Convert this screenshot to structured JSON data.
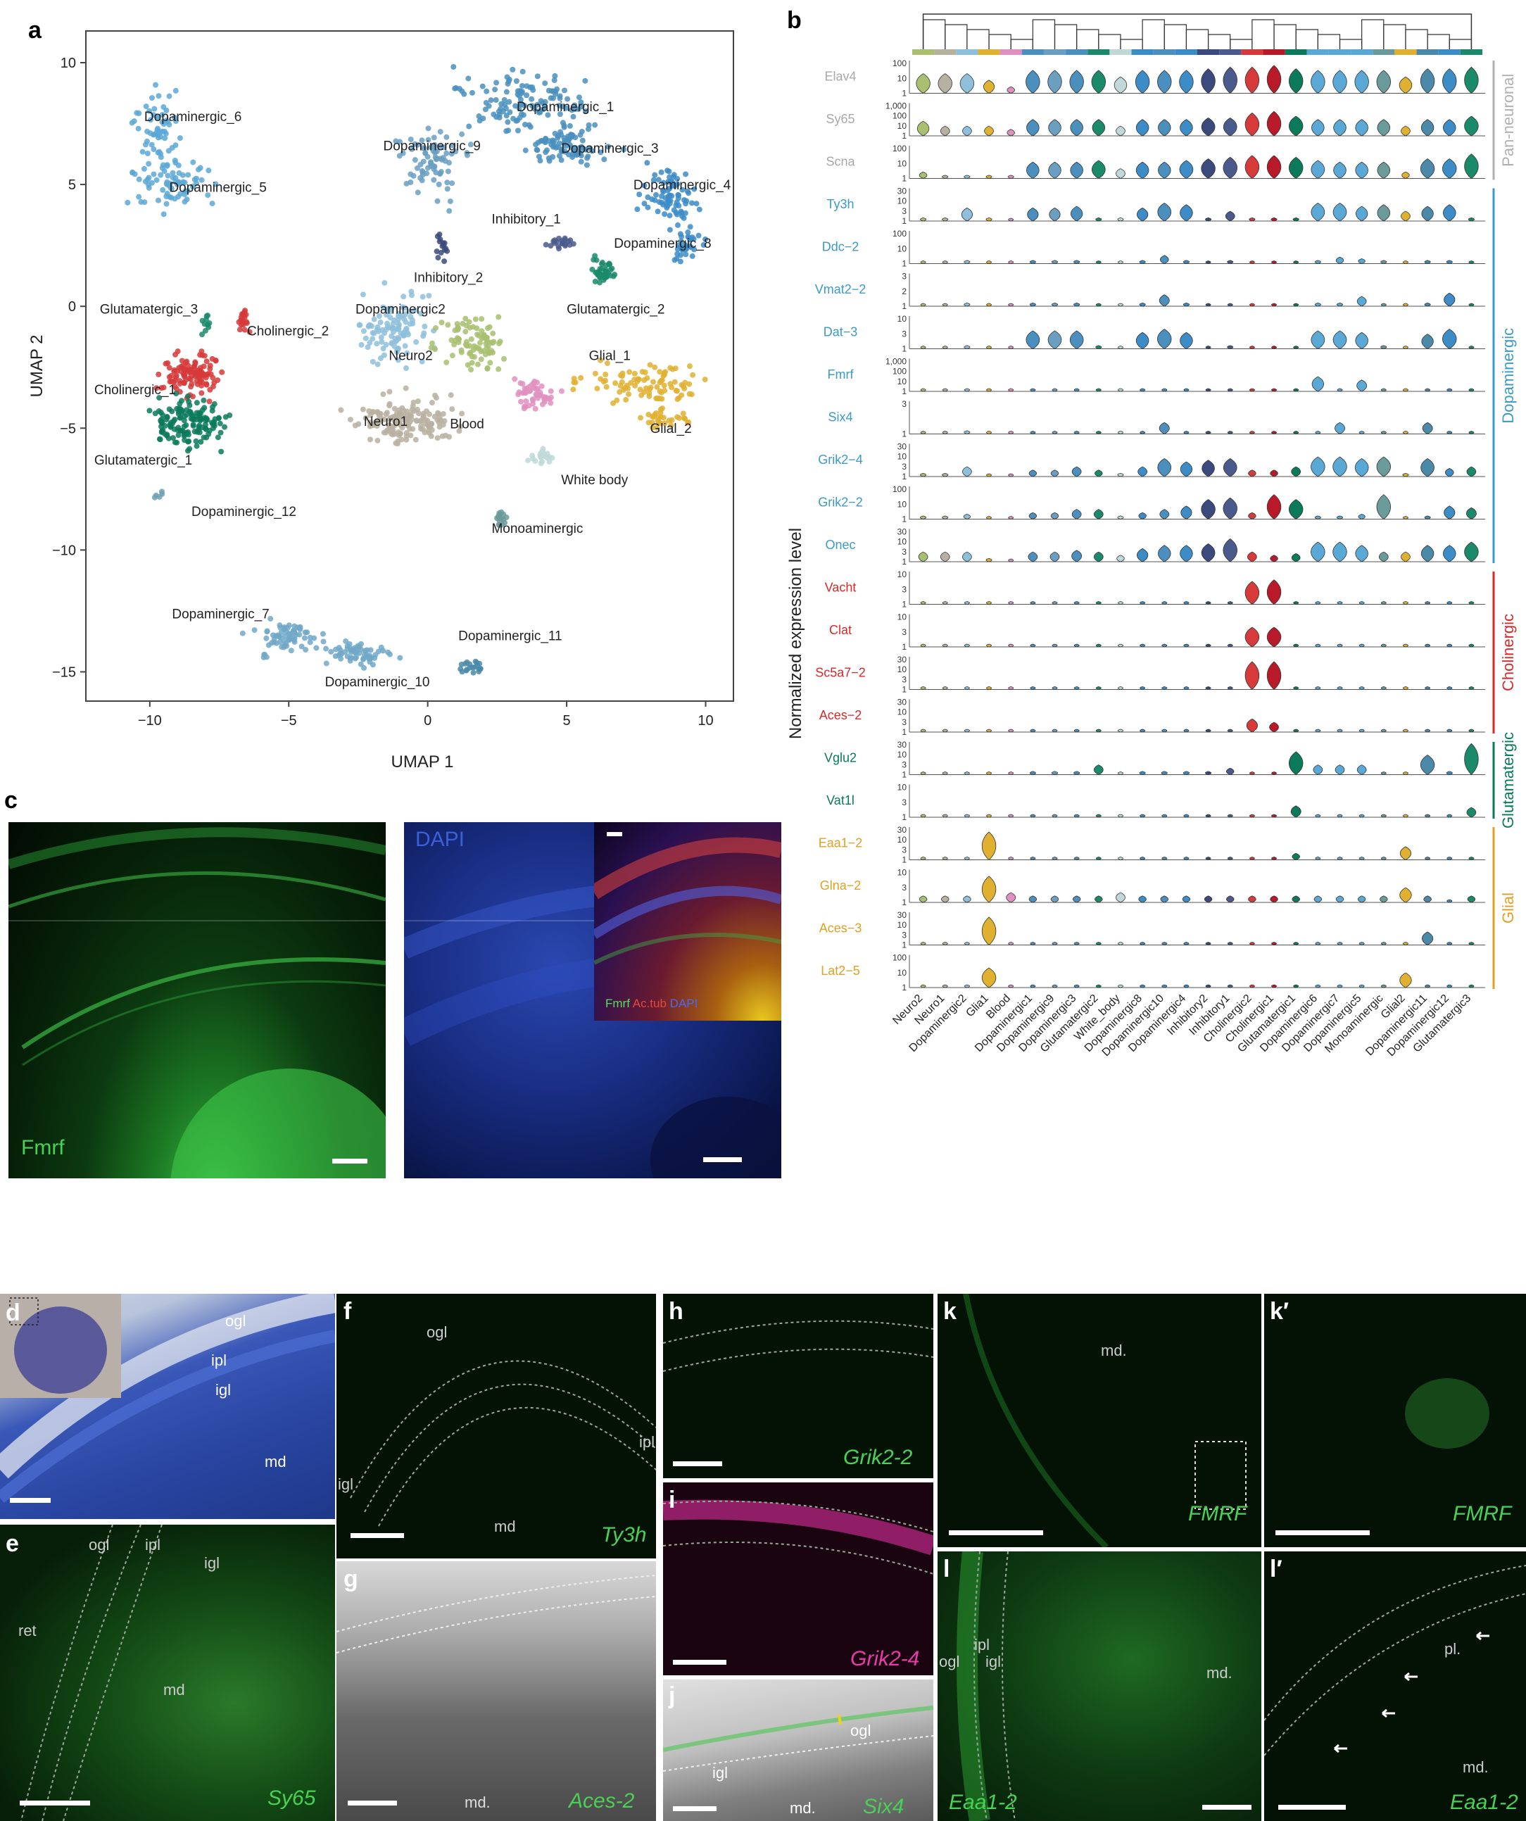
{
  "panel_letters": {
    "a": "a",
    "b": "b",
    "c": "c",
    "d": "d",
    "e": "e",
    "f": "f",
    "g": "g",
    "h": "h",
    "i": "i",
    "j": "j",
    "k": "k",
    "k_prime": "k′",
    "l": "l",
    "l_prime": "l′"
  },
  "umap": {
    "xlabel": "UMAP 1",
    "ylabel": "UMAP 2",
    "x_ticks": [
      "−10",
      "−5",
      "0",
      "5",
      "10"
    ],
    "y_ticks": [
      "10",
      "5",
      "0",
      "−5",
      "−10",
      "−15"
    ],
    "clusters": [
      {
        "name": "Dopaminergic_6",
        "color": "#5aa8d6"
      },
      {
        "name": "Dopaminergic_5",
        "color": "#5aa8d6"
      },
      {
        "name": "Dopaminergic_1",
        "color": "#4a8fbe"
      },
      {
        "name": "Dopaminergic_9",
        "color": "#6a9fc2"
      },
      {
        "name": "Dopaminergic_3",
        "color": "#4a8fbe"
      },
      {
        "name": "Dopaminergic_4",
        "color": "#3c8cc8"
      },
      {
        "name": "Inhibitory_1",
        "color": "#4a5a8c"
      },
      {
        "name": "Dopaminergic_8",
        "color": "#3c8cc8"
      },
      {
        "name": "Inhibitory_2",
        "color": "#3a4a7c"
      },
      {
        "name": "Glutamatergic_2",
        "color": "#1a8a6a"
      },
      {
        "name": "Glutamatergic_3",
        "color": "#1a8a6a"
      },
      {
        "name": "Cholinergic_2",
        "color": "#d63a3a"
      },
      {
        "name": "Dopaminergic2",
        "color": "#8ec0dc"
      },
      {
        "name": "Neuro2",
        "color": "#a8c070"
      },
      {
        "name": "Glial_1",
        "color": "#e0b030"
      },
      {
        "name": "Cholinergic_1",
        "color": "#d63a3a"
      },
      {
        "name": "Neuro1",
        "color": "#b8b0a0"
      },
      {
        "name": "Blood",
        "color": "#e090c0"
      },
      {
        "name": "Glial_2",
        "color": "#e0b030"
      },
      {
        "name": "Glutamatergic_1",
        "color": "#0a7a5a"
      },
      {
        "name": "White body",
        "color": "#c0d8d8"
      },
      {
        "name": "Dopaminergic_12",
        "color": "#70a0b0"
      },
      {
        "name": "Monoaminergic",
        "color": "#6a9a9a"
      },
      {
        "name": "Dopaminergic_7",
        "color": "#70a8c8"
      },
      {
        "name": "Dopaminergic_11",
        "color": "#4a8aa8"
      },
      {
        "name": "Dopaminergic_10",
        "color": "#70a8c8"
      }
    ]
  },
  "violin": {
    "ylabel": "Normalized expression level",
    "categories": [
      "Neuro2",
      "Neuro1",
      "Dopaminergic2",
      "Glia1",
      "Blood",
      "Dopaminergic1",
      "Dopaminergic9",
      "Dopaminergic3",
      "Glutamatergic2",
      "White_body",
      "Dopaminergic8",
      "Dopaminergic10",
      "Dopaminergic4",
      "Inhibitory2",
      "Inhibitory1",
      "Cholinergic2",
      "Cholinergic1",
      "Glutamatergic1",
      "Dopaminergic6",
      "Dopaminergic7",
      "Dopaminergic5",
      "Monoaminergic",
      "Glial2",
      "Dopaminergic11",
      "Dopaminergic12",
      "Glutamatergic3"
    ],
    "category_colors": [
      "#a8c070",
      "#b8b0a0",
      "#8ec0dc",
      "#e0b030",
      "#e090c0",
      "#4a8fbe",
      "#6a9fc2",
      "#4a8fbe",
      "#1a8a6a",
      "#c0d8d8",
      "#3c8cc8",
      "#4a8fbe",
      "#3c8cc8",
      "#3a4a7c",
      "#4a5a8c",
      "#d63a3a",
      "#b81a2a",
      "#0a7a5a",
      "#5aa8d6",
      "#5aa8d6",
      "#5aa8d6",
      "#6a9a9a",
      "#e0b030",
      "#4a8aa8",
      "#3c8cc8",
      "#1a8a6a"
    ],
    "genes": [
      {
        "name": "Elav4",
        "color": "#a8a8a8",
        "ticks": [
          "100",
          "10",
          "1"
        ]
      },
      {
        "name": "Sy65",
        "color": "#a8a8a8",
        "ticks": [
          "1,000",
          "100",
          "10",
          "1"
        ]
      },
      {
        "name": "Scna",
        "color": "#a8a8a8",
        "ticks": [
          "100",
          "10",
          "1"
        ]
      },
      {
        "name": "Ty3h",
        "color": "#3a9ac8",
        "ticks": [
          "30",
          "10",
          "3",
          "1"
        ]
      },
      {
        "name": "Ddc−2",
        "color": "#3a9ac8",
        "ticks": [
          "100",
          "10",
          "1"
        ]
      },
      {
        "name": "Vmat2−2",
        "color": "#3a9ac8",
        "ticks": [
          "3",
          "2",
          "1"
        ]
      },
      {
        "name": "Dat−3",
        "color": "#3a9ac8",
        "ticks": [
          "10",
          "3",
          "1"
        ]
      },
      {
        "name": "Fmrf",
        "color": "#3a9ac8",
        "ticks": [
          "1,000",
          "100",
          "10",
          "1"
        ]
      },
      {
        "name": "Six4",
        "color": "#3a9ac8",
        "ticks": [
          "3",
          "1"
        ]
      },
      {
        "name": "Grik2−4",
        "color": "#3a9ac8",
        "ticks": [
          "30",
          "10",
          "3",
          "1"
        ]
      },
      {
        "name": "Grik2−2",
        "color": "#3a9ac8",
        "ticks": [
          "100",
          "10",
          "1"
        ]
      },
      {
        "name": "Onec",
        "color": "#3a9ac8",
        "ticks": [
          "30",
          "10",
          "3",
          "1"
        ]
      },
      {
        "name": "Vacht",
        "color": "#d62a2a",
        "ticks": [
          "10",
          "3",
          "1"
        ]
      },
      {
        "name": "Clat",
        "color": "#d62a2a",
        "ticks": [
          "10",
          "3",
          "1"
        ]
      },
      {
        "name": "Sc5a7−2",
        "color": "#d62a2a",
        "ticks": [
          "30",
          "10",
          "3",
          "1"
        ]
      },
      {
        "name": "Aces−2",
        "color": "#d62a2a",
        "ticks": [
          "30",
          "10",
          "3",
          "1"
        ]
      },
      {
        "name": "Vglu2",
        "color": "#0a7a5a",
        "ticks": [
          "30",
          "10",
          "3",
          "1"
        ]
      },
      {
        "name": "Vat1l",
        "color": "#0a7a5a",
        "ticks": [
          "10",
          "3",
          "1"
        ]
      },
      {
        "name": "Eaa1−2",
        "color": "#e0a020",
        "ticks": [
          "30",
          "10",
          "3",
          "1"
        ]
      },
      {
        "name": "Glna−2",
        "color": "#e0a020",
        "ticks": [
          "10",
          "3",
          "1"
        ]
      },
      {
        "name": "Aces−3",
        "color": "#e0a020",
        "ticks": [
          "30",
          "10",
          "3",
          "1"
        ]
      },
      {
        "name": "Lat2−5",
        "color": "#e0a020",
        "ticks": [
          "100",
          "10",
          "1"
        ]
      }
    ],
    "groups": [
      {
        "name": "Pan-neuronal",
        "color": "#b0b0b0"
      },
      {
        "name": "Dopaminergic",
        "color": "#3a9ac8"
      },
      {
        "name": "Cholinergic",
        "color": "#d62a2a"
      },
      {
        "name": "Glutamatergic",
        "color": "#0a7a5a"
      },
      {
        "name": "Glial",
        "color": "#e0a020"
      }
    ]
  },
  "micrographs": {
    "c_left_label": "Fmrf",
    "c_right_label": "DAPI",
    "c_inset_fmrf": "Fmrf",
    "c_inset_actub": "Ac.tub",
    "c_inset_dapi": "DAPI",
    "d_regions": [
      "ogl",
      "ipl",
      "igl",
      "md"
    ],
    "e_label": "Sy65",
    "e_regions": [
      "ret",
      "ogl",
      "ipl",
      "igl",
      "md"
    ],
    "f_label": "Ty3h",
    "f_regions": [
      "ogl",
      "ipl",
      "igl",
      "md"
    ],
    "g_label": "Aces-2",
    "g_regions": [
      "md."
    ],
    "h_label": "Grik2-2",
    "i_label": "Grik2-4",
    "j_label": "Six4",
    "j_regions": [
      "ogl",
      "igl",
      "md."
    ],
    "k_label": "FMRF",
    "k_regions": [
      "md."
    ],
    "k_prime_label": "FMRF",
    "l_label": "Eaa1-2",
    "l_regions": [
      "ogl",
      "ipl",
      "igl",
      "md."
    ],
    "l_prime_label": "Eaa1-2",
    "l_prime_regions": [
      "pl.",
      "md."
    ]
  }
}
